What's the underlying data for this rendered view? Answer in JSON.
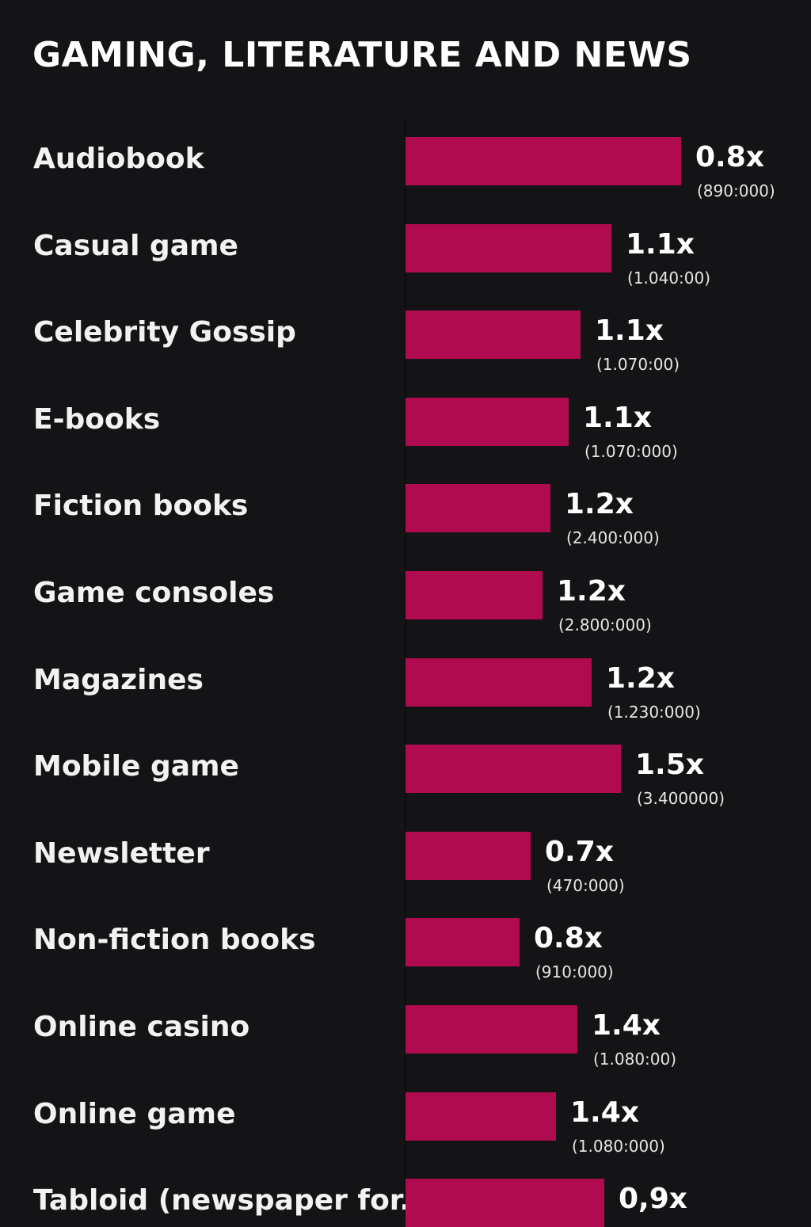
{
  "chart_data": {
    "type": "bar",
    "orientation": "horizontal",
    "title": "GAMING, LITERATURE AND NEWS",
    "xlabel": "",
    "ylabel": "",
    "categories": [
      "Audiobook",
      "Casual game",
      "Celebrity Gossip",
      "E-books",
      "Fiction books",
      "Game consoles",
      "Magazines",
      "Mobile game",
      "Newsletter",
      "Non-fiction books",
      "Online casino",
      "Online game",
      "Tabloid (newspaper for.."
    ],
    "value_labels": [
      "0.8x",
      "1.1x",
      "1.1x",
      "1.1x",
      "1.2x",
      "1.2x",
      "1.2x",
      "1.5x",
      "0.7x",
      "0.8x",
      "1.4x",
      "1.4x",
      "0,9x"
    ],
    "count_labels": [
      "(890:000)",
      "(1.040:00)",
      "(1.070:00)",
      "(1.070:000)",
      "(2.400:000)",
      "(2.800:000)",
      "(1.230:000)",
      "(3.400000)",
      "(470:000)",
      "(910:000)",
      "(1.080:00)",
      "(1.080:000)",
      ""
    ],
    "values": [
      0.8,
      1.1,
      1.1,
      1.1,
      1.2,
      1.2,
      1.2,
      1.5,
      0.7,
      0.8,
      1.4,
      1.4,
      0.9
    ],
    "bar_lengths": [
      348,
      260,
      221,
      206,
      183,
      173,
      235,
      272,
      158,
      144,
      217,
      190,
      251
    ],
    "bar_length_scale_max": 348,
    "grid": false,
    "legend": "none",
    "bar_color": "#b00b4e",
    "background_color": "#141416"
  }
}
